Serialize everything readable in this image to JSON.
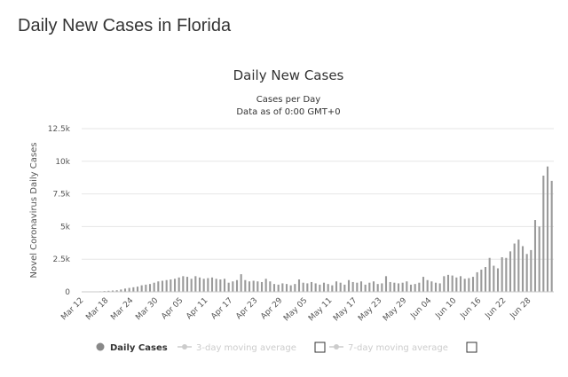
{
  "page": {
    "title": "Daily New Cases in Florida"
  },
  "chart_data": {
    "type": "bar",
    "title": "Daily New Cases",
    "subtitle_line1": "Cases per Day",
    "subtitle_line2": "Data as of 0:00 GMT+0",
    "ylabel": "Novel Coronavirus Daily Cases",
    "xlabel": "",
    "ylim": [
      0,
      12500
    ],
    "yticks": [
      0,
      2500,
      5000,
      7500,
      10000,
      12500
    ],
    "ytick_labels": [
      "0",
      "2.5k",
      "5k",
      "7.5k",
      "10k",
      "12.5k"
    ],
    "xtick_labels": [
      "Mar 12",
      "Mar 18",
      "Mar 24",
      "Mar 30",
      "Apr 05",
      "Apr 11",
      "Apr 17",
      "Apr 23",
      "Apr 29",
      "May 05",
      "May 11",
      "May 17",
      "May 23",
      "May 29",
      "Jun 04",
      "Jun 10",
      "Jun 16",
      "Jun 22",
      "Jun 28"
    ],
    "grid": true,
    "series": [
      {
        "name": "Daily Cases",
        "color": "#9a9a9a",
        "start_date": "Mar 12",
        "values": [
          10,
          15,
          20,
          30,
          40,
          60,
          80,
          100,
          120,
          180,
          250,
          300,
          350,
          400,
          500,
          550,
          600,
          700,
          800,
          850,
          900,
          950,
          1000,
          1100,
          1200,
          1150,
          1000,
          1200,
          1100,
          1000,
          1050,
          1100,
          1000,
          950,
          1000,
          700,
          800,
          900,
          1350,
          900,
          800,
          850,
          800,
          750,
          1000,
          800,
          600,
          550,
          650,
          600,
          500,
          600,
          950,
          700,
          650,
          750,
          650,
          550,
          700,
          600,
          500,
          800,
          700,
          550,
          900,
          750,
          700,
          800,
          550,
          700,
          800,
          600,
          650,
          1200,
          750,
          700,
          650,
          700,
          800,
          550,
          600,
          700,
          1150,
          900,
          800,
          700,
          650,
          1200,
          1300,
          1250,
          1100,
          1200,
          1000,
          1050,
          1150,
          1500,
          1700,
          1900,
          2600,
          2000,
          1800,
          2650,
          2600,
          3100,
          3700,
          4000,
          3500,
          2900,
          3200,
          5500,
          5000,
          8900,
          9600,
          8500
        ]
      }
    ],
    "legend": [
      {
        "label": "Daily Cases",
        "active": true,
        "color": "#888888"
      },
      {
        "label": "3-day moving average",
        "active": false,
        "color": "#cccccc"
      },
      {
        "label": "7-day moving average",
        "active": false,
        "color": "#cccccc"
      }
    ]
  }
}
